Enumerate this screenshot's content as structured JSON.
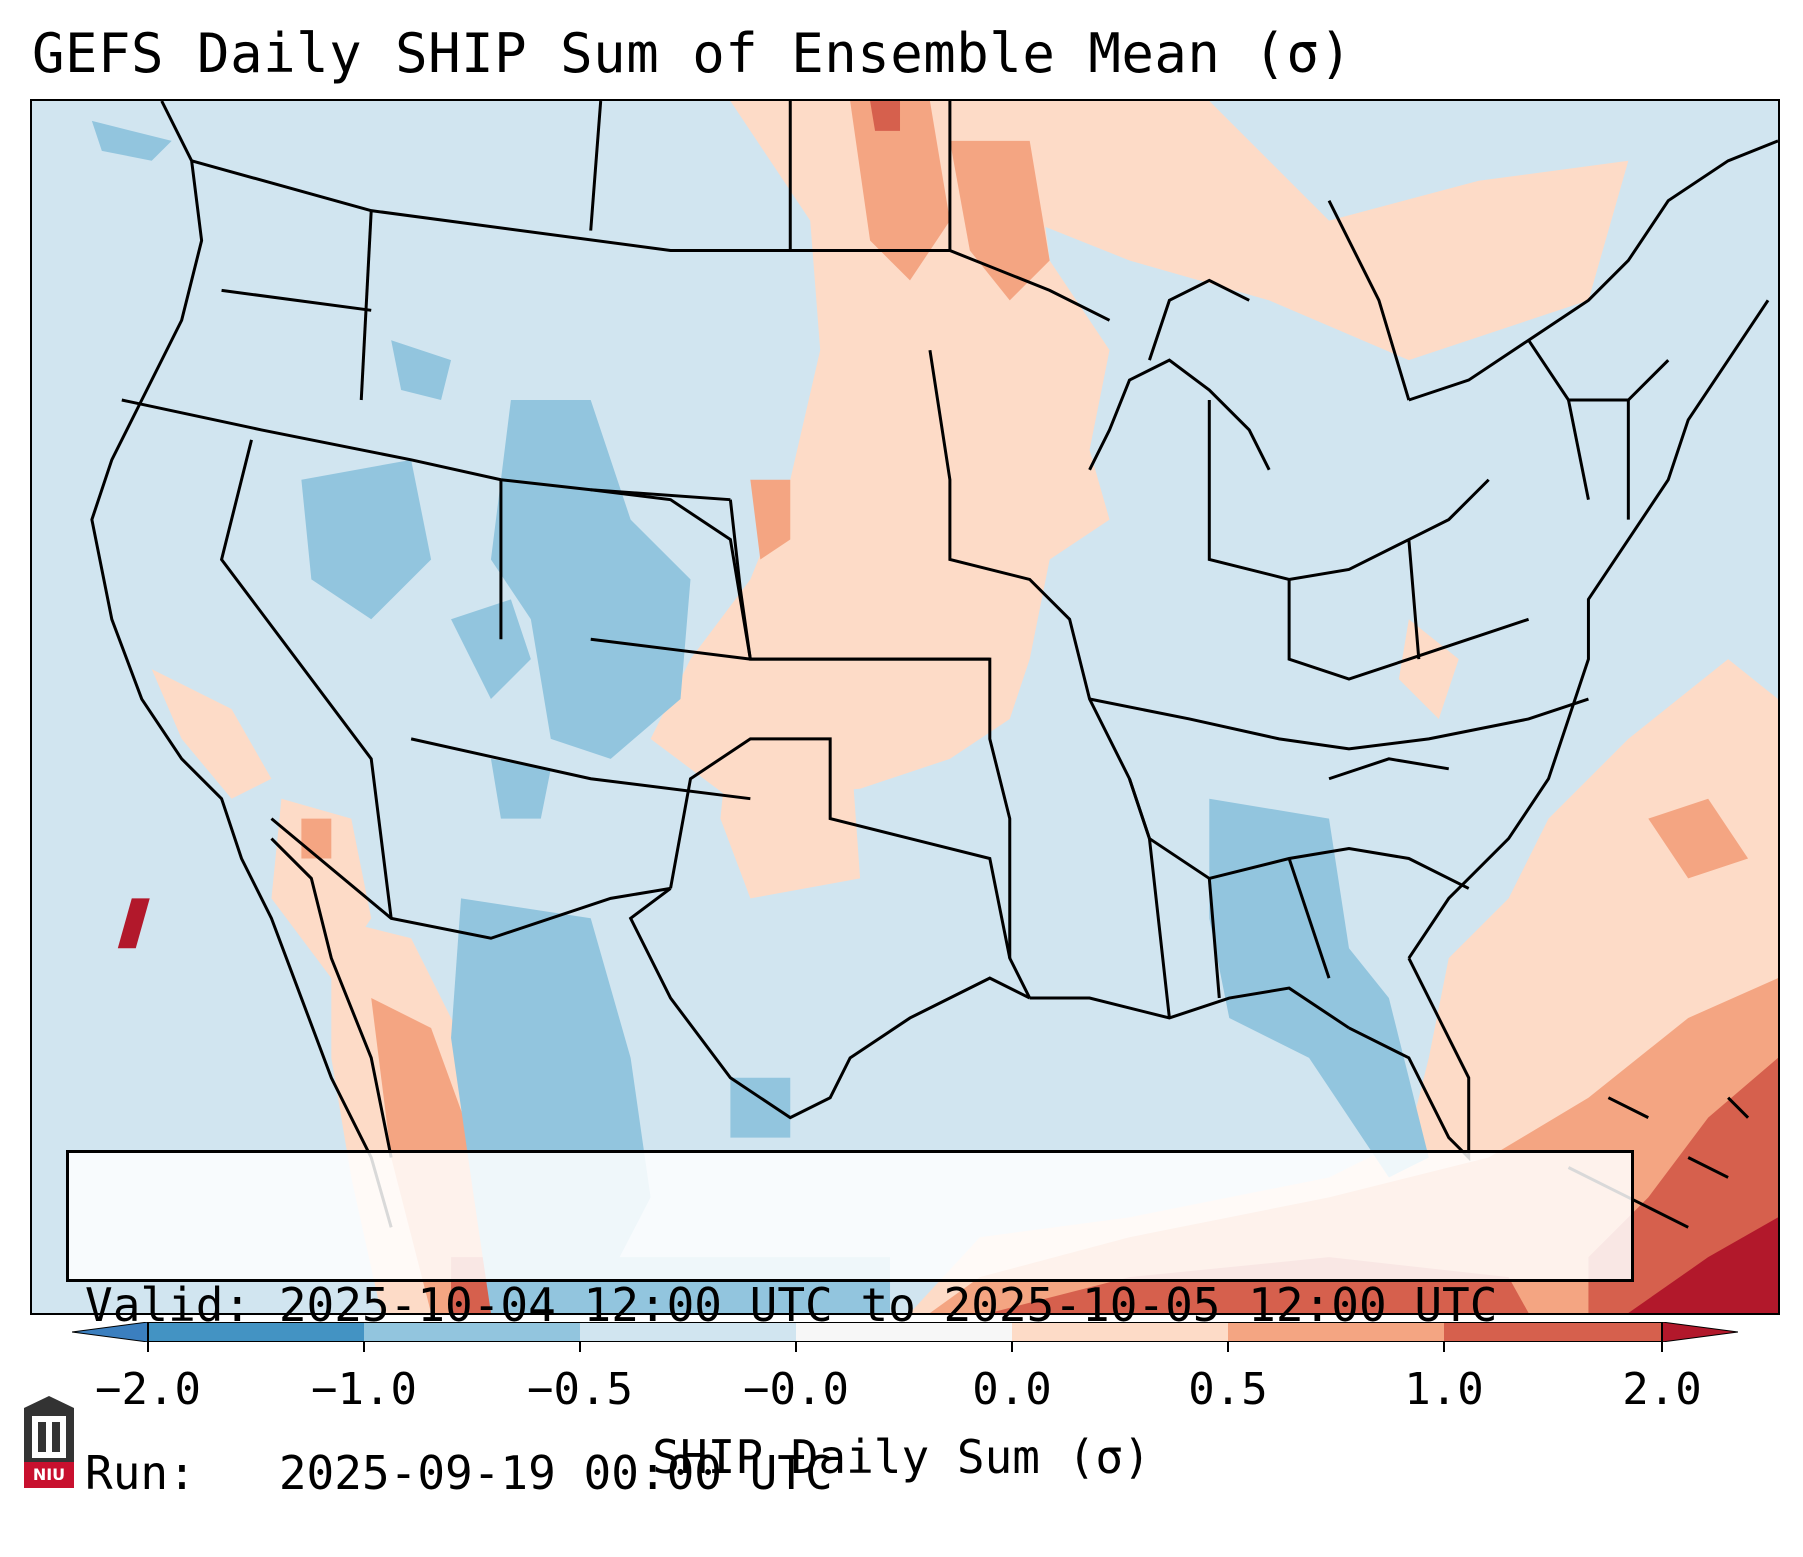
{
  "title": "GEFS Daily SHIP Sum of Ensemble Mean (σ)",
  "info": {
    "valid_line": "Valid: 2025-10-04 12:00 UTC to 2025-10-05 12:00 UTC",
    "run_line": "Run:   2025-09-19 00:00 UTC"
  },
  "colorbar": {
    "label": "SHIP Daily Sum (σ)",
    "ticks": [
      "−2.0",
      "−1.0",
      "−0.5",
      "−0.0",
      "0.0",
      "0.5",
      "1.0",
      "2.0"
    ],
    "bins": [
      {
        "range": "below -2.0",
        "color": "#3b7fbf"
      },
      {
        "range": "-2.0 to -1.0",
        "color": "#4393c3"
      },
      {
        "range": "-1.0 to -0.5",
        "color": "#92c5de"
      },
      {
        "range": "-0.5 to -0.0",
        "color": "#d1e5f0"
      },
      {
        "range": "-0.0 to 0.0",
        "color": "#f7f7f7"
      },
      {
        "range": "0.0 to 0.5",
        "color": "#fddbc7"
      },
      {
        "range": "0.5 to 1.0",
        "color": "#f4a582"
      },
      {
        "range": "1.0 to 2.0",
        "color": "#d6604d"
      },
      {
        "range": "above 2.0",
        "color": "#b2182b"
      }
    ]
  },
  "logo": {
    "text": "NIU",
    "color": "#c8102e"
  },
  "map": {
    "region": "Continental United States, northern Mexico, southern Canada",
    "background_color": "#d1e5f0",
    "outline_color": "#000000"
  }
}
